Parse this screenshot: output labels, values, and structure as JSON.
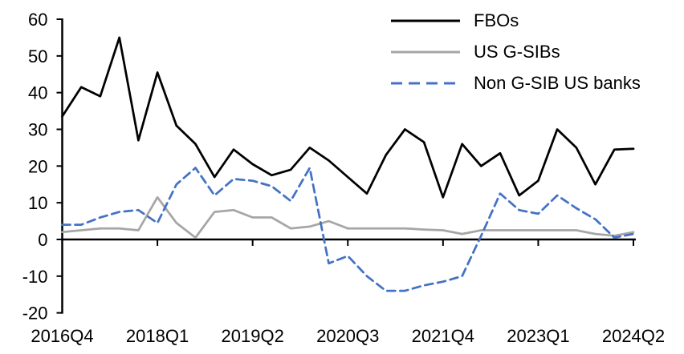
{
  "chart_data": {
    "type": "line",
    "title": "",
    "xlabel": "",
    "ylabel": "",
    "ylim": [
      -20,
      60
    ],
    "grid": false,
    "legend_position": "top-right-inside",
    "categories": [
      "2016Q4",
      "2017Q1",
      "2017Q2",
      "2017Q3",
      "2017Q4",
      "2018Q1",
      "2018Q2",
      "2018Q3",
      "2018Q4",
      "2019Q1",
      "2019Q2",
      "2019Q3",
      "2019Q4",
      "2020Q1",
      "2020Q2",
      "2020Q3",
      "2020Q4",
      "2021Q1",
      "2021Q2",
      "2021Q3",
      "2021Q4",
      "2022Q1",
      "2022Q2",
      "2022Q3",
      "2022Q4",
      "2023Q1",
      "2023Q2",
      "2023Q3",
      "2023Q4",
      "2024Q1",
      "2024Q2"
    ],
    "x_tick_labels": [
      "2016Q4",
      "2018Q1",
      "2019Q2",
      "2020Q3",
      "2021Q4",
      "2023Q1",
      "2024Q2"
    ],
    "x_tick_indices": [
      0,
      5,
      10,
      15,
      20,
      25,
      30
    ],
    "y_ticks": [
      60,
      50,
      40,
      30,
      20,
      10,
      0,
      -10,
      -20
    ],
    "axis_color": "#000000",
    "series": [
      {
        "name": "FBOs",
        "color": "#000000",
        "style": "solid",
        "values": [
          33.5,
          41.5,
          39,
          55,
          27,
          45.5,
          31,
          26,
          17,
          24.5,
          20.5,
          17.5,
          19,
          25,
          21.5,
          17,
          12.5,
          23,
          30,
          26.5,
          11.5,
          26,
          20,
          23.5,
          12,
          16,
          30,
          25,
          15,
          24.5,
          24.7
        ]
      },
      {
        "name": "US G-SIBs",
        "color": "#a6a6a6",
        "style": "solid",
        "values": [
          2,
          2.5,
          3,
          3,
          2.5,
          11.5,
          4.5,
          0.5,
          7.5,
          8,
          6,
          6,
          3,
          3.5,
          5,
          3,
          3,
          3,
          3,
          2.7,
          2.5,
          1.5,
          2.5,
          2.5,
          2.5,
          2.5,
          2.5,
          2.5,
          1.5,
          1,
          2
        ]
      },
      {
        "name": "Non G-SIB US banks",
        "color": "#4472c4",
        "style": "dashed",
        "values": [
          4,
          4,
          6,
          7.5,
          8,
          4.5,
          15,
          19.5,
          12,
          16.5,
          16,
          14.5,
          10.5,
          19.5,
          -6.5,
          -4.5,
          -10,
          -14,
          -14,
          -12.5,
          -11.5,
          -10,
          1,
          12.5,
          8,
          7,
          12,
          8.5,
          5.5,
          0.5,
          1.5
        ]
      }
    ]
  }
}
